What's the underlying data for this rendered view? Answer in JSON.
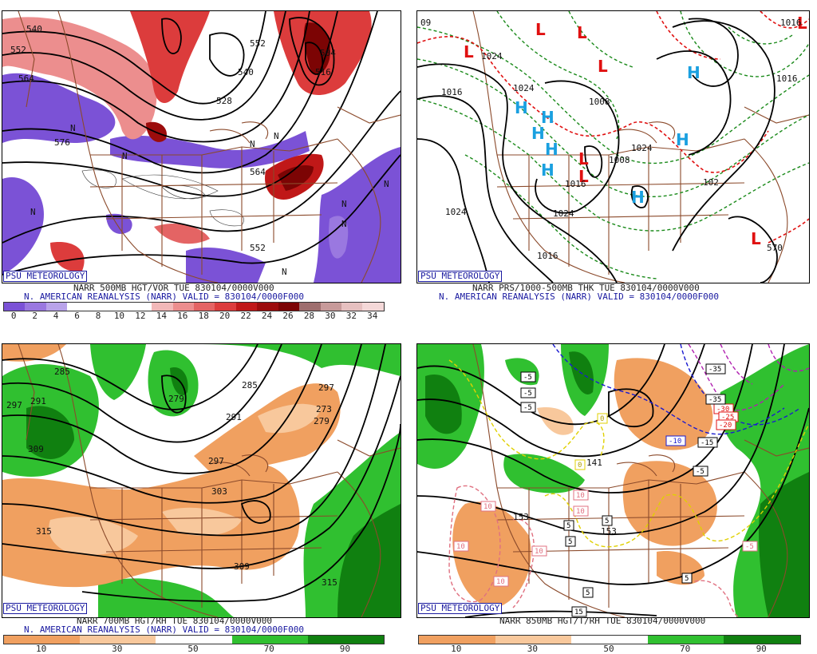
{
  "panels": {
    "vor500": {
      "badge": "PSU METEOROLOGY",
      "caption1": "NARR 500MB HGT/VOR TUE 830104/0000V000",
      "caption2": "N. AMERICAN REANALYSIS (NARR) VALID = 830104/0000F000",
      "scale_ticks": [
        "0",
        "2",
        "4",
        "6",
        "8",
        "10",
        "12",
        "14",
        "16",
        "18",
        "20",
        "22",
        "24",
        "26",
        "28",
        "30",
        "32",
        "34"
      ],
      "scale_colors": [
        "#7b52d6",
        "#9a78e0",
        "#b9a3ea",
        "#ffffff",
        "#ffffff",
        "#ffffff",
        "#ffffff",
        "#f2b8b8",
        "#ec8e8e",
        "#e46464",
        "#dc3c3c",
        "#c01818",
        "#9c0c0c",
        "#7c0404",
        "#9e6e6e",
        "#c79a9a",
        "#e6c0c0",
        "#f4d8d8"
      ],
      "contour_labels": [
        "540",
        "552",
        "564",
        "576",
        "552",
        "504",
        "516",
        "540",
        "528",
        "564",
        "552"
      ],
      "symbols": [
        "N",
        "N",
        "N",
        "N",
        "N",
        "N",
        "N",
        "N",
        "N"
      ]
    },
    "prs": {
      "badge": "PSU METEOROLOGY",
      "caption1": "NARR PRS/1000-500MB THK TUE 830104/0000V000",
      "caption2": "N. AMERICAN REANALYSIS (NARR) VALID = 830104/0000F000",
      "contour_labels": [
        "1016",
        "1024",
        "1008",
        "1024",
        "1016",
        "1024",
        "1016",
        "1016",
        "1008",
        "1024",
        "1024",
        "102",
        "570",
        "1016",
        "09"
      ],
      "lows": [
        "L",
        "L",
        "L",
        "L",
        "L",
        "L",
        "L",
        "L"
      ],
      "highs": [
        "H",
        "H",
        "H",
        "H",
        "H",
        "H",
        "H",
        "H"
      ]
    },
    "rh700": {
      "badge": "PSU METEOROLOGY",
      "caption1": "NARR 700MB HGT/RH TUE 830104/0000V000",
      "caption2": "N. AMERICAN REANALYSIS (NARR) VALID = 830104/0000F000",
      "scale_ticks": [
        "10",
        "30",
        "50",
        "70",
        "90"
      ],
      "scale_colors": [
        "#f0a060",
        "#f8c89c",
        "#ffffff",
        "#30c030",
        "#108010"
      ],
      "contour_labels": [
        "285",
        "291",
        "297",
        "279",
        "285",
        "291",
        "297",
        "279",
        "273",
        "303",
        "309",
        "315",
        "309",
        "315",
        "297"
      ]
    },
    "t850": {
      "badge": "PSU METEOROLOGY",
      "caption1": "NARR 850MB HGT/T/RH TUE 830104/0000V000",
      "scale_ticks": [
        "10",
        "30",
        "50",
        "70",
        "90"
      ],
      "scale_colors": [
        "#f0a060",
        "#f8c89c",
        "#ffffff",
        "#30c030",
        "#108010"
      ],
      "contour_labels": [
        "141",
        "153",
        "153"
      ],
      "temp_boxes": [
        "-35",
        "-30",
        "-25",
        "-20",
        "-35",
        "-15",
        "-10",
        "-5",
        "-5",
        "-5",
        "0",
        "0",
        "5",
        "5",
        "5",
        "5",
        "5",
        "10",
        "10",
        "10",
        "10",
        "10",
        "10",
        "15",
        "-5",
        "-5"
      ]
    }
  }
}
